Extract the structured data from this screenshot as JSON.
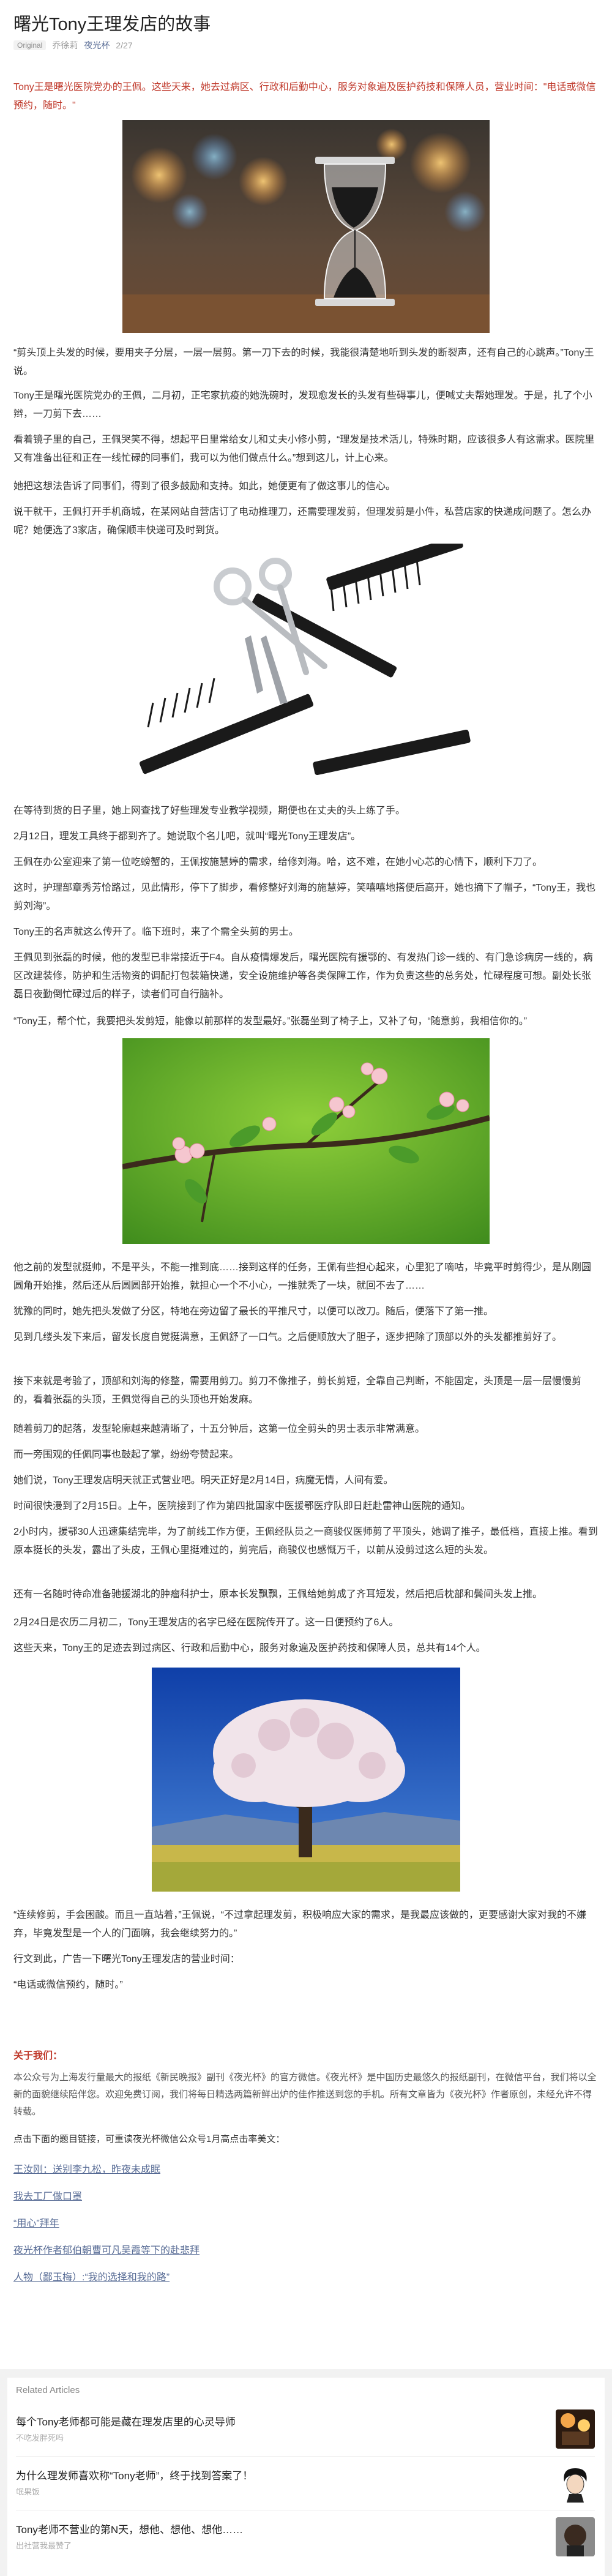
{
  "header": {
    "title": "曙光Tony王理发店的故事",
    "original_tag": "Original",
    "author": "乔徐莉",
    "account": "夜光杯",
    "date": "2/27"
  },
  "article": {
    "intro": "Tony王是曙光医院党办的王佩。这些天来，她去过病区、行政和后勤中心，服务对象遍及医护药技和保障人员，营业时间：\"电话或微信预约，随时。\"",
    "p1": "“剪头顶上头发的时候，要用夹子分层，一层一层剪。第一刀下去的时候，我能很清楚地听到头发的断裂声，还有自己的心跳声。”Tony王说。",
    "p2": "Tony王是曙光医院党办的王佩，二月初，正宅家抗疫的她洗碗时，发现愈发长的头发有些碍事儿，便喊丈夫帮她理发。于是，扎了个小辫，一刀剪下去……",
    "p3": "看着镜子里的自己，王佩哭笑不得，想起平日里常给女儿和丈夫小修小剪，“理发是技术活儿，特殊时期，应该很多人有这需求。医院里又有准备出征和正在一线忙碌的同事们，我可以为他们做点什么。”想到这儿，计上心来。",
    "p4": "她把这想法告诉了同事们，得到了很多鼓励和支持。如此，她便更有了做这事儿的信心。",
    "p5": "说干就干，王佩打开手机商城，在某网站自营店订了电动推理刀，还需要理发剪，但理发剪是小件，私营店家的快递成问题了。怎么办呢？她便选了3家店，确保顺丰快递可及时到货。",
    "p6": "在等待到货的日子里，她上网查找了好些理发专业教学视频，期便也在丈夫的头上练了手。",
    "p7": "2月12日，理发工具终于都到齐了。她说取个名儿吧，就叫“曙光Tony王理发店”。",
    "p8": "王佩在办公室迎来了第一位吃螃蟹的，王佩按施慧婷的需求，给修刘海。哈，这不难，在她小心芯的心情下，顺利下刀了。",
    "p9": "这时，护理部章秀芳恰路过，见此情形，停下了脚步，看修整好刘海的施慧婷，笑嘻嘻地搭便后高开，她也摘下了帽子，“Tony王，我也剪刘海”。",
    "p10": "Tony王的名声就这么传开了。临下班时，来了个需全头剪的男士。",
    "p11": "王佩见到张磊的时候，他的发型已非常接近于F4。自从疫情爆发后，曙光医院有援鄂的、有发热门诊一线的、有门急诊病房一线的，病区改建装修，防护和生活物资的调配打包装箱快递，安全设施维护等各类保障工作，作为负责这些的总务处，忙碌程度可想。副处长张磊日夜勤倒忙碌过后的样子，读者们可自行脑补。",
    "p12": "“Tony王，帮个忙，我要把头发剪短，能像以前那样的发型最好。”张磊坐到了椅子上，又补了句，“随意剪，我相信你的。”",
    "p13": "他之前的发型就挺帅，不是平头，不能一推到底……接到这样的任务，王佩有些担心起来，心里犯了嘀咕，毕竟平时剪得少，是从刚圆圆角开始推，然后还从后圆圆部开始推，就担心一个不小心，一推就秃了一块，就回不去了……",
    "p14": "犹豫的同时，她先把头发做了分区，特地在旁边留了最长的平推尺寸，以便可以改刀。随后，便落下了第一推。",
    "p15": "见到几缕头发下来后，留发长度自觉挺满意，王佩舒了一口气。之后便顺放大了胆子，逐步把除了顶部以外的头发都推剪好了。",
    "p16": "接下来就是考验了，顶部和刘海的修整，需要用剪刀。剪刀不像推子，剪长剪短，全靠自己判断，不能固定，头顶是一层一层慢慢剪的，看着张磊的头顶，王佩觉得自己的头顶也开始发麻。",
    "p17": "随着剪刀的起落，发型轮廓越来越清晰了，十五分钟后，这第一位全剪头的男士表示非常满意。",
    "p18": "而一旁围观的任佩同事也鼓起了掌，纷纷夸赞起来。",
    "p19": "她们说，Tony王理发店明天就正式营业吧。明天正好是2月14日，病魔无情，人间有爱。",
    "p20": "时间很快漫到了2月15日。上午，医院接到了作为第四批国家中医援鄂医疗队即日赶赴雷神山医院的通知。",
    "p21": "2小时内，援鄂30人迅速集结完毕，为了前线工作方便，王佩经队员之一商骏仪医师剪了平顶头，她调了推子，最低档，直接上推。看到原本挺长的头发，露出了头皮，王佩心里挺难过的，剪完后，商骏仪也感慨万千，以前从没剪过这么短的头发。",
    "p22": "还有一名随时待命准备驰援湖北的肿瘤科护士，原本长发飘飘，王佩给她剪成了齐耳短发，然后把后枕部和鬓间头发上推。",
    "p23": "2月24日是农历二月初二，Tony王理发店的名字已经在医院传开了。这一日便预约了6人。",
    "p24": "这些天来，Tony王的足迹去到过病区、行政和后勤中心，服务对象遍及医护药技和保障人员，总共有14个人。",
    "p25": "“连续修剪，手会困酸。而且一直站着，”王佩说，“不过拿起理发剪，积极响应大家的需求，是我最应该做的，更要感谢大家对我的不嫌弃，毕竟发型是一个人的门面嘛，我会继续努力的。”",
    "p26": "行文到此，广告一下曙光Tony王理发店的营业时间：",
    "p27": "“电话或微信预约，随时。”"
  },
  "footer": {
    "about_title": "关于我们：",
    "about_text": "本公众号为上海发行量最大的报纸《新民晚报》副刊《夜光杯》的官方微信。《夜光杯》是中国历史最悠久的报纸副刊，在微信平台，我们将以全新的面貌继续陪伴您。欢迎免费订阅，我们将每日精选两篇新鲜出炉的佳作推送到您的手机。所有文章皆为《夜光杯》作者原创，未经允许不得转载。",
    "read_more": "点击下面的题目链接，可重读夜光杯微信公众号1月高点击率美文：",
    "links": [
      "王汝刚：送别李九松，昨夜未成眠",
      "我去工厂做口罩",
      "“用心”拜年",
      "夜光杯作者郁伯朝曹可凡吴霞等下的赴悲拜",
      "人物（鄙玉梅）:“我的选择和我的路”"
    ]
  },
  "related": {
    "heading": "Related Articles",
    "items": [
      {
        "title": "每个Tony老师都可能是藏在理发店里的心灵导师",
        "source": "不吃发胖死吗"
      },
      {
        "title": "为什么理发师喜欢称“Tony老师”，终于找到答案了！",
        "source": "氓果饭"
      },
      {
        "title": "Tony老师不营业的第N天，想他、想他、想他……",
        "source": "出社营我最赞了"
      }
    ]
  },
  "colors": {
    "accent_red": "#c0392b",
    "link_blue": "#576b95"
  }
}
